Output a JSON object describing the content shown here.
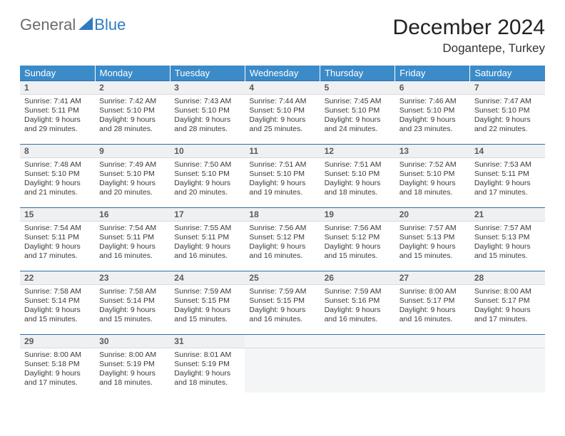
{
  "logo": {
    "part1": "General",
    "part2": "Blue"
  },
  "title": "December 2024",
  "location": "Dogantepe, Turkey",
  "colors": {
    "header_bg": "#3b8bc9",
    "header_text": "#ffffff",
    "daynum_bg": "#eef0f2",
    "daynum_border_top": "#2f6fa8",
    "logo_gray": "#6b6b6b",
    "logo_blue": "#2f7bbf"
  },
  "dow": [
    "Sunday",
    "Monday",
    "Tuesday",
    "Wednesday",
    "Thursday",
    "Friday",
    "Saturday"
  ],
  "weeks": [
    [
      {
        "n": "1",
        "sr": "7:41 AM",
        "ss": "5:11 PM",
        "dl": "9 hours and 29 minutes."
      },
      {
        "n": "2",
        "sr": "7:42 AM",
        "ss": "5:10 PM",
        "dl": "9 hours and 28 minutes."
      },
      {
        "n": "3",
        "sr": "7:43 AM",
        "ss": "5:10 PM",
        "dl": "9 hours and 28 minutes."
      },
      {
        "n": "4",
        "sr": "7:44 AM",
        "ss": "5:10 PM",
        "dl": "9 hours and 25 minutes."
      },
      {
        "n": "5",
        "sr": "7:45 AM",
        "ss": "5:10 PM",
        "dl": "9 hours and 24 minutes."
      },
      {
        "n": "6",
        "sr": "7:46 AM",
        "ss": "5:10 PM",
        "dl": "9 hours and 23 minutes."
      },
      {
        "n": "7",
        "sr": "7:47 AM",
        "ss": "5:10 PM",
        "dl": "9 hours and 22 minutes."
      }
    ],
    [
      {
        "n": "8",
        "sr": "7:48 AM",
        "ss": "5:10 PM",
        "dl": "9 hours and 21 minutes."
      },
      {
        "n": "9",
        "sr": "7:49 AM",
        "ss": "5:10 PM",
        "dl": "9 hours and 20 minutes."
      },
      {
        "n": "10",
        "sr": "7:50 AM",
        "ss": "5:10 PM",
        "dl": "9 hours and 20 minutes."
      },
      {
        "n": "11",
        "sr": "7:51 AM",
        "ss": "5:10 PM",
        "dl": "9 hours and 19 minutes."
      },
      {
        "n": "12",
        "sr": "7:51 AM",
        "ss": "5:10 PM",
        "dl": "9 hours and 18 minutes."
      },
      {
        "n": "13",
        "sr": "7:52 AM",
        "ss": "5:10 PM",
        "dl": "9 hours and 18 minutes."
      },
      {
        "n": "14",
        "sr": "7:53 AM",
        "ss": "5:11 PM",
        "dl": "9 hours and 17 minutes."
      }
    ],
    [
      {
        "n": "15",
        "sr": "7:54 AM",
        "ss": "5:11 PM",
        "dl": "9 hours and 17 minutes."
      },
      {
        "n": "16",
        "sr": "7:54 AM",
        "ss": "5:11 PM",
        "dl": "9 hours and 16 minutes."
      },
      {
        "n": "17",
        "sr": "7:55 AM",
        "ss": "5:11 PM",
        "dl": "9 hours and 16 minutes."
      },
      {
        "n": "18",
        "sr": "7:56 AM",
        "ss": "5:12 PM",
        "dl": "9 hours and 16 minutes."
      },
      {
        "n": "19",
        "sr": "7:56 AM",
        "ss": "5:12 PM",
        "dl": "9 hours and 15 minutes."
      },
      {
        "n": "20",
        "sr": "7:57 AM",
        "ss": "5:13 PM",
        "dl": "9 hours and 15 minutes."
      },
      {
        "n": "21",
        "sr": "7:57 AM",
        "ss": "5:13 PM",
        "dl": "9 hours and 15 minutes."
      }
    ],
    [
      {
        "n": "22",
        "sr": "7:58 AM",
        "ss": "5:14 PM",
        "dl": "9 hours and 15 minutes."
      },
      {
        "n": "23",
        "sr": "7:58 AM",
        "ss": "5:14 PM",
        "dl": "9 hours and 15 minutes."
      },
      {
        "n": "24",
        "sr": "7:59 AM",
        "ss": "5:15 PM",
        "dl": "9 hours and 15 minutes."
      },
      {
        "n": "25",
        "sr": "7:59 AM",
        "ss": "5:15 PM",
        "dl": "9 hours and 16 minutes."
      },
      {
        "n": "26",
        "sr": "7:59 AM",
        "ss": "5:16 PM",
        "dl": "9 hours and 16 minutes."
      },
      {
        "n": "27",
        "sr": "8:00 AM",
        "ss": "5:17 PM",
        "dl": "9 hours and 16 minutes."
      },
      {
        "n": "28",
        "sr": "8:00 AM",
        "ss": "5:17 PM",
        "dl": "9 hours and 17 minutes."
      }
    ],
    [
      {
        "n": "29",
        "sr": "8:00 AM",
        "ss": "5:18 PM",
        "dl": "9 hours and 17 minutes."
      },
      {
        "n": "30",
        "sr": "8:00 AM",
        "ss": "5:19 PM",
        "dl": "9 hours and 18 minutes."
      },
      {
        "n": "31",
        "sr": "8:01 AM",
        "ss": "5:19 PM",
        "dl": "9 hours and 18 minutes."
      },
      null,
      null,
      null,
      null
    ]
  ],
  "labels": {
    "sunrise": "Sunrise:",
    "sunset": "Sunset:",
    "daylight": "Daylight:"
  }
}
